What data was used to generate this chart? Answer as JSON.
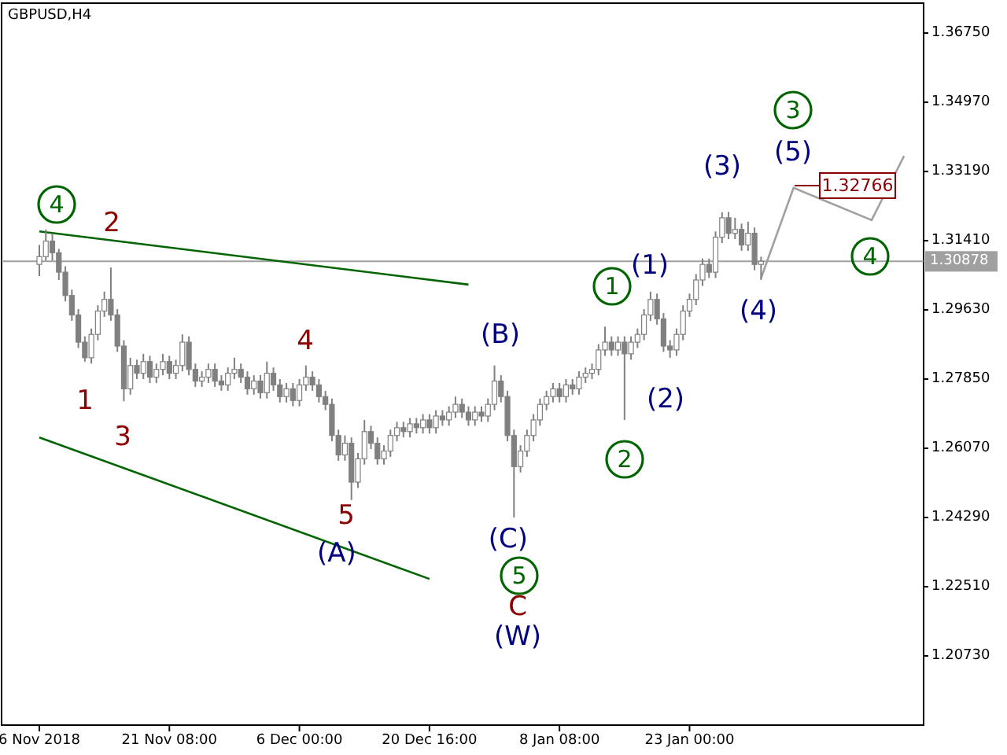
{
  "chart_data": {
    "type": "candlestick",
    "title": "GBPUSD,H4",
    "color": "#808080",
    "categories": [
      "6 Nov 2018",
      null,
      null,
      null,
      null,
      null,
      null,
      null,
      null,
      null,
      null,
      null,
      null,
      null,
      null,
      null,
      null,
      null,
      null,
      null,
      "21 Nov 08:00",
      null,
      null,
      null,
      null,
      null,
      null,
      null,
      null,
      null,
      null,
      null,
      null,
      null,
      null,
      null,
      null,
      null,
      null,
      null,
      "6 Dec 00:00",
      null,
      null,
      null,
      null,
      null,
      null,
      null,
      null,
      null,
      null,
      null,
      null,
      null,
      null,
      null,
      null,
      null,
      null,
      null,
      "20 Dec 16:00",
      null,
      null,
      null,
      null,
      null,
      null,
      null,
      null,
      null,
      null,
      null,
      null,
      null,
      null,
      null,
      null,
      null,
      null,
      null,
      "8 Jan 08:00",
      null,
      null,
      null,
      null,
      null,
      null,
      null,
      null,
      null,
      null,
      null,
      null,
      null,
      null,
      null,
      null,
      null,
      null,
      null,
      "23 Jan 00:00",
      null,
      null,
      null,
      null,
      null,
      null,
      null,
      null,
      null,
      null,
      null,
      null,
      null,
      null,
      null,
      null,
      null,
      null,
      null,
      null,
      null,
      null,
      null,
      null,
      null,
      null,
      null,
      null,
      null,
      null,
      null,
      null,
      null,
      null,
      null,
      null
    ],
    "ohlc": [
      [
        1.308,
        1.313,
        1.305,
        1.31
      ],
      [
        1.31,
        1.317,
        1.309,
        1.314
      ],
      [
        1.314,
        1.316,
        1.309,
        1.311
      ],
      [
        1.311,
        1.312,
        1.304,
        1.306
      ],
      [
        1.306,
        1.3075,
        1.2985,
        1.3
      ],
      [
        1.3,
        1.3015,
        1.2935,
        1.295
      ],
      [
        1.295,
        1.2965,
        1.2865,
        1.288
      ],
      [
        1.288,
        1.2895,
        1.283,
        1.284
      ],
      [
        1.284,
        1.2915,
        1.2825,
        1.29
      ],
      [
        1.29,
        1.2975,
        1.2885,
        1.296
      ],
      [
        1.296,
        1.301,
        1.2945,
        1.299
      ],
      [
        1.299,
        1.3072,
        1.2935,
        1.295
      ],
      [
        1.295,
        1.2965,
        1.2855,
        1.287
      ],
      [
        1.287,
        1.2885,
        1.2728,
        1.276
      ],
      [
        1.276,
        1.284,
        1.2745,
        1.282
      ],
      [
        1.282,
        1.2835,
        1.2785,
        1.28
      ],
      [
        1.28,
        1.285,
        1.2785,
        1.283
      ],
      [
        1.283,
        1.2845,
        1.2775,
        1.279
      ],
      [
        1.279,
        1.2825,
        1.2775,
        1.281
      ],
      [
        1.281,
        1.285,
        1.2795,
        1.283
      ],
      [
        1.283,
        1.2845,
        1.2785,
        1.28
      ],
      [
        1.28,
        1.2835,
        1.2785,
        1.282
      ],
      [
        1.282,
        1.29,
        1.2805,
        1.288
      ],
      [
        1.288,
        1.2895,
        1.2795,
        1.281
      ],
      [
        1.281,
        1.2825,
        1.2765,
        1.278
      ],
      [
        1.278,
        1.2805,
        1.2765,
        1.279
      ],
      [
        1.279,
        1.2825,
        1.2775,
        1.281
      ],
      [
        1.281,
        1.2825,
        1.2765,
        1.278
      ],
      [
        1.278,
        1.2795,
        1.2755,
        1.277
      ],
      [
        1.277,
        1.2815,
        1.2755,
        1.28
      ],
      [
        1.28,
        1.284,
        1.2785,
        1.281
      ],
      [
        1.281,
        1.2825,
        1.2775,
        1.279
      ],
      [
        1.279,
        1.2805,
        1.2745,
        1.276
      ],
      [
        1.276,
        1.2795,
        1.2745,
        1.278
      ],
      [
        1.278,
        1.2795,
        1.2735,
        1.275
      ],
      [
        1.275,
        1.283,
        1.2735,
        1.28
      ],
      [
        1.28,
        1.2815,
        1.2755,
        1.277
      ],
      [
        1.277,
        1.2785,
        1.2725,
        1.274
      ],
      [
        1.274,
        1.2775,
        1.2725,
        1.276
      ],
      [
        1.276,
        1.2775,
        1.2715,
        1.273
      ],
      [
        1.273,
        1.2785,
        1.2715,
        1.277
      ],
      [
        1.277,
        1.282,
        1.2755,
        1.279
      ],
      [
        1.279,
        1.2805,
        1.2755,
        1.277
      ],
      [
        1.277,
        1.2785,
        1.2725,
        1.274
      ],
      [
        1.274,
        1.2755,
        1.2705,
        1.272
      ],
      [
        1.272,
        1.2735,
        1.2625,
        1.264
      ],
      [
        1.264,
        1.2655,
        1.2575,
        1.259
      ],
      [
        1.259,
        1.264,
        1.2575,
        1.262
      ],
      [
        1.262,
        1.2635,
        1.2474,
        1.252
      ],
      [
        1.252,
        1.2595,
        1.2505,
        1.258
      ],
      [
        1.258,
        1.268,
        1.2565,
        1.265
      ],
      [
        1.265,
        1.2665,
        1.2605,
        1.262
      ],
      [
        1.262,
        1.2635,
        1.2565,
        1.258
      ],
      [
        1.258,
        1.2615,
        1.2565,
        1.26
      ],
      [
        1.26,
        1.2655,
        1.2585,
        1.264
      ],
      [
        1.264,
        1.2675,
        1.2625,
        1.266
      ],
      [
        1.266,
        1.2675,
        1.2635,
        1.265
      ],
      [
        1.265,
        1.2685,
        1.2635,
        1.267
      ],
      [
        1.267,
        1.2685,
        1.2645,
        1.266
      ],
      [
        1.266,
        1.2695,
        1.2645,
        1.268
      ],
      [
        1.268,
        1.2695,
        1.2645,
        1.266
      ],
      [
        1.266,
        1.2705,
        1.2645,
        1.269
      ],
      [
        1.269,
        1.2705,
        1.2665,
        1.268
      ],
      [
        1.268,
        1.2715,
        1.2665,
        1.27
      ],
      [
        1.27,
        1.274,
        1.2685,
        1.272
      ],
      [
        1.272,
        1.2735,
        1.2685,
        1.27
      ],
      [
        1.27,
        1.2715,
        1.2665,
        1.268
      ],
      [
        1.268,
        1.2715,
        1.2665,
        1.27
      ],
      [
        1.27,
        1.2715,
        1.2675,
        1.269
      ],
      [
        1.269,
        1.2735,
        1.2675,
        1.272
      ],
      [
        1.272,
        1.282,
        1.2705,
        1.278
      ],
      [
        1.278,
        1.2795,
        1.2725,
        1.274
      ],
      [
        1.274,
        1.2755,
        1.2625,
        1.264
      ],
      [
        1.264,
        1.2655,
        1.2429,
        1.256
      ],
      [
        1.256,
        1.2615,
        1.2545,
        1.26
      ],
      [
        1.26,
        1.2655,
        1.2585,
        1.264
      ],
      [
        1.264,
        1.2695,
        1.2625,
        1.268
      ],
      [
        1.268,
        1.2735,
        1.2665,
        1.272
      ],
      [
        1.272,
        1.2755,
        1.2705,
        1.274
      ],
      [
        1.274,
        1.2775,
        1.2725,
        1.276
      ],
      [
        1.276,
        1.2775,
        1.2725,
        1.274
      ],
      [
        1.274,
        1.2785,
        1.2725,
        1.277
      ],
      [
        1.277,
        1.2785,
        1.2745,
        1.276
      ],
      [
        1.276,
        1.2805,
        1.2745,
        1.279
      ],
      [
        1.279,
        1.2815,
        1.2775,
        1.28
      ],
      [
        1.28,
        1.2825,
        1.2785,
        1.281
      ],
      [
        1.281,
        1.2875,
        1.2795,
        1.286
      ],
      [
        1.286,
        1.292,
        1.2845,
        1.288
      ],
      [
        1.288,
        1.2895,
        1.2845,
        1.286
      ],
      [
        1.286,
        1.2895,
        1.2845,
        1.288
      ],
      [
        1.288,
        1.2895,
        1.268,
        1.285
      ],
      [
        1.285,
        1.2895,
        1.2835,
        1.288
      ],
      [
        1.288,
        1.2915,
        1.2865,
        1.29
      ],
      [
        1.29,
        1.2965,
        1.2885,
        1.295
      ],
      [
        1.295,
        1.301,
        1.2935,
        1.299
      ],
      [
        1.299,
        1.3005,
        1.2925,
        1.294
      ],
      [
        1.294,
        1.2955,
        1.2855,
        1.287
      ],
      [
        1.287,
        1.2885,
        1.284,
        1.286
      ],
      [
        1.286,
        1.2915,
        1.2845,
        1.29
      ],
      [
        1.29,
        1.2975,
        1.2885,
        1.296
      ],
      [
        1.296,
        1.3005,
        1.2945,
        1.299
      ],
      [
        1.299,
        1.3055,
        1.2975,
        1.304
      ],
      [
        1.304,
        1.3095,
        1.3025,
        1.308
      ],
      [
        1.308,
        1.3095,
        1.3045,
        1.306
      ],
      [
        1.306,
        1.3165,
        1.3045,
        1.315
      ],
      [
        1.315,
        1.3214,
        1.3135,
        1.32
      ],
      [
        1.32,
        1.3215,
        1.3145,
        1.316
      ],
      [
        1.316,
        1.32,
        1.3145,
        1.317
      ],
      [
        1.317,
        1.3185,
        1.3115,
        1.313
      ],
      [
        1.313,
        1.319,
        1.3115,
        1.316
      ],
      [
        1.316,
        1.3175,
        1.3065,
        1.308
      ],
      [
        1.308,
        1.31,
        1.304,
        1.3088
      ],
      null,
      null,
      null,
      null,
      null,
      null,
      null,
      null,
      null,
      null,
      null,
      null,
      null,
      null,
      null,
      null,
      null,
      null,
      null,
      null,
      null,
      null,
      null,
      null,
      null
    ],
    "series": [
      {
        "type": "line",
        "color": "#006400",
        "values": [
          1.3165,
          null,
          null,
          null,
          null,
          null,
          null,
          null,
          null,
          null,
          null,
          null,
          null,
          null,
          null,
          null,
          null,
          null,
          null,
          null,
          null,
          null,
          null,
          null,
          null,
          null,
          null,
          null,
          null,
          null,
          null,
          null,
          null,
          null,
          null,
          null,
          null,
          null,
          null,
          null,
          null,
          null,
          null,
          null,
          null,
          null,
          null,
          null,
          null,
          null,
          null,
          null,
          null,
          null,
          null,
          null,
          null,
          null,
          null,
          null,
          null,
          null,
          null,
          null,
          null,
          null,
          1.3028,
          null,
          null,
          null,
          null,
          null,
          null,
          null,
          null,
          null,
          null,
          null,
          null,
          null,
          null,
          null,
          null,
          null,
          null,
          null,
          null,
          null,
          null,
          null,
          null,
          null,
          null,
          null,
          null,
          null,
          null,
          null,
          null,
          null,
          null,
          null,
          null,
          null,
          null,
          null,
          null,
          null,
          null,
          null,
          null,
          null,
          null,
          null,
          null,
          null,
          null,
          null,
          null,
          null,
          null,
          null,
          null,
          null,
          null,
          null,
          null,
          null,
          null,
          null,
          null,
          null,
          null,
          null,
          null,
          null,
          null
        ]
      },
      {
        "type": "line",
        "color": "#006400",
        "values": [
          1.2635,
          null,
          null,
          null,
          null,
          null,
          null,
          null,
          null,
          null,
          null,
          null,
          null,
          null,
          null,
          null,
          null,
          null,
          null,
          null,
          null,
          null,
          null,
          null,
          null,
          null,
          null,
          null,
          null,
          null,
          null,
          null,
          null,
          null,
          null,
          null,
          null,
          null,
          null,
          null,
          null,
          null,
          null,
          null,
          null,
          null,
          null,
          null,
          null,
          null,
          null,
          null,
          null,
          null,
          null,
          null,
          null,
          null,
          null,
          null,
          1.2271,
          null,
          null,
          null,
          null,
          null,
          null,
          null,
          null,
          null,
          null,
          null,
          null,
          null,
          null,
          null,
          null,
          null,
          null,
          null,
          null,
          null,
          null,
          null,
          null,
          null,
          null,
          null,
          null,
          null,
          null,
          null,
          null,
          null,
          null,
          null,
          null,
          null,
          null,
          null,
          null,
          null,
          null,
          null,
          null,
          null,
          null,
          null,
          null,
          null,
          null,
          null,
          null,
          null,
          null,
          null,
          null,
          null,
          null,
          null,
          null,
          null,
          null,
          null,
          null,
          null,
          null,
          null,
          null,
          null,
          null,
          null,
          null,
          null,
          null,
          null,
          null
        ]
      },
      {
        "type": "line",
        "color": "#a0a0a0",
        "values": [
          null,
          null,
          null,
          null,
          null,
          null,
          null,
          null,
          null,
          null,
          null,
          null,
          null,
          null,
          null,
          null,
          null,
          null,
          null,
          null,
          null,
          null,
          null,
          null,
          null,
          null,
          null,
          null,
          null,
          null,
          null,
          null,
          null,
          null,
          null,
          null,
          null,
          null,
          null,
          null,
          null,
          null,
          null,
          null,
          null,
          null,
          null,
          null,
          null,
          null,
          null,
          null,
          null,
          null,
          null,
          null,
          null,
          null,
          null,
          null,
          null,
          null,
          null,
          null,
          null,
          null,
          null,
          null,
          null,
          null,
          null,
          null,
          null,
          null,
          null,
          null,
          null,
          null,
          null,
          null,
          null,
          null,
          null,
          null,
          null,
          null,
          null,
          null,
          null,
          null,
          null,
          null,
          null,
          null,
          null,
          null,
          null,
          null,
          null,
          null,
          null,
          null,
          null,
          null,
          null,
          null,
          null,
          null,
          null,
          null,
          null,
          1.3045,
          null,
          null,
          null,
          null,
          1.3277,
          null,
          null,
          null,
          null,
          null,
          null,
          null,
          null,
          null,
          null,
          null,
          1.3194,
          null,
          null,
          null,
          null,
          1.3359,
          null,
          null,
          null
        ]
      }
    ],
    "ylim": [
      1.1895,
      1.3752
    ],
    "yticks": [
      {
        "value": 1.3675,
        "label": "1.36750"
      },
      {
        "value": 1.3497,
        "label": "1.34970"
      },
      {
        "value": 1.3319,
        "label": "1.33190"
      },
      {
        "value": 1.3141,
        "label": "1.31410"
      },
      {
        "value": 1.2963,
        "label": "1.29630"
      },
      {
        "value": 1.2785,
        "label": "1.27850"
      },
      {
        "value": 1.2607,
        "label": "1.26070"
      },
      {
        "value": 1.2429,
        "label": "1.24290"
      },
      {
        "value": 1.2251,
        "label": "1.22510"
      },
      {
        "value": 1.2073,
        "label": "1.20730"
      }
    ],
    "ref_lines": [
      {
        "axis": "y",
        "value": 1.30878,
        "label": "1.30878",
        "color": "#a0a0a0"
      }
    ],
    "annotations": [
      "4",
      "2",
      "1",
      "3",
      "4",
      "5",
      "(A)",
      "(B)",
      "(C)",
      "5",
      "C",
      "(W)",
      "1",
      "(1)",
      "(2)",
      "2",
      "(3)",
      "(4)",
      "3",
      "(5)",
      "4",
      "1.32766"
    ]
  }
}
